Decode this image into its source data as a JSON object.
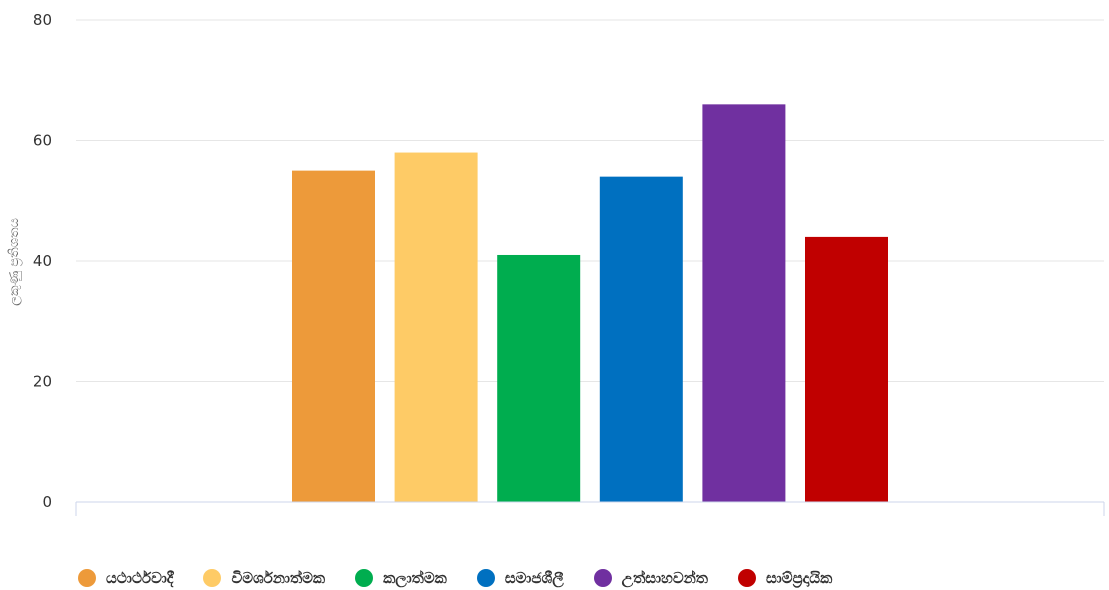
{
  "chart_data": {
    "type": "bar",
    "title": "",
    "xlabel": "",
    "ylabel": "ලකුණු ප්‍රතිශතය",
    "ylim": [
      0,
      80
    ],
    "yticks": [
      0,
      20,
      40,
      60,
      80
    ],
    "grid": true,
    "legend_position": "bottom-left",
    "series": [
      {
        "name": "යථාර්ථවාදී",
        "value": 55,
        "color": "#ed9a3a"
      },
      {
        "name": "විමර්ශනාත්මක",
        "value": 58,
        "color": "#fecb66"
      },
      {
        "name": "කලාත්මක",
        "value": 41,
        "color": "#00ad4f"
      },
      {
        "name": "සමාජශීලී",
        "value": 54,
        "color": "#0070c0"
      },
      {
        "name": "උත්සාහවන්ත",
        "value": 66,
        "color": "#7030a0"
      },
      {
        "name": "සාම්ප්‍රදායික",
        "value": 44,
        "color": "#c00000"
      }
    ]
  }
}
